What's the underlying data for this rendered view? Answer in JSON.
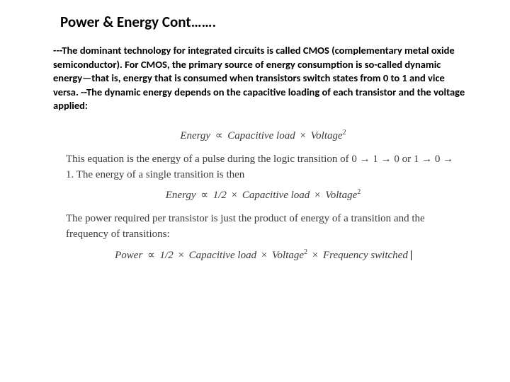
{
  "slide": {
    "title": "Power & Energy  Cont…….",
    "body": "---The dominant technology for integrated circuits is called CMOS (complementary metal oxide semiconductor). For CMOS, the primary source of energy consumption is so-called dynamic energy—that is, energy that is consumed when transistors switch states from 0 to 1 and vice versa.\n--The dynamic energy depends on the capacitive loading of each transistor and the voltage applied:"
  },
  "equations": {
    "eq1": {
      "lhs": "Energy",
      "rhs1": " Capacitive load ",
      "rhs2": " Voltage",
      "exp": "2"
    },
    "text1": "This equation is the energy of a pulse during the logic transition of 0 → 1 → 0 or 1 → 0 → 1. The energy of a single transition is then",
    "eq2": {
      "lhs": "Energy",
      "factor": " 1/2 ",
      "rhs1": " Capacitive load ",
      "rhs2": " Voltage",
      "exp": "2"
    },
    "text2": "The power required per transistor is just the product of energy of a transition and the frequency of transitions:",
    "eq3": {
      "lhs": "Power",
      "factor": " 1/2 ",
      "rhs1": " Capacitive load ",
      "rhs2": " Voltage",
      "exp": "2",
      "rhs3": " Frequency switched"
    }
  },
  "styling": {
    "title_fontsize": 21,
    "body_fontsize": 14.5,
    "eq_fontsize": 15,
    "title_color": "#000000",
    "body_color": "#000000",
    "eq_color": "#3a3a3a",
    "background": "#ffffff",
    "body_font": "Calibri",
    "eq_font": "Times New Roman"
  }
}
